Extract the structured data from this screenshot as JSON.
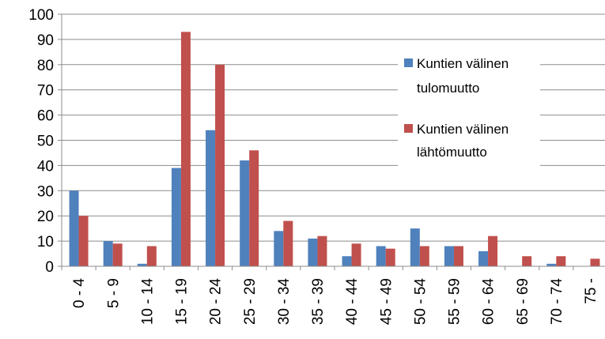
{
  "chart_data": {
    "type": "bar",
    "categories": [
      "0 - 4",
      "5 - 9",
      "10 - 14",
      "15 - 19",
      "20 - 24",
      "25 - 29",
      "30 - 34",
      "35 - 39",
      "40 - 44",
      "45 - 49",
      "50 - 54",
      "55 - 59",
      "60 - 64",
      "65 - 69",
      "70 - 74",
      "75 -"
    ],
    "series": [
      {
        "name_lines": [
          "Kuntien välinen",
          "tulomuutto"
        ],
        "color": "#4F81BD",
        "values": [
          30,
          10,
          1,
          39,
          54,
          42,
          14,
          11,
          4,
          8,
          15,
          8,
          6,
          0,
          1,
          0
        ]
      },
      {
        "name_lines": [
          "Kuntien välinen",
          "lähtömuutto"
        ],
        "color": "#C0504D",
        "values": [
          20,
          9,
          8,
          93,
          80,
          46,
          18,
          12,
          9,
          7,
          8,
          8,
          12,
          4,
          4,
          3
        ]
      }
    ],
    "title": "",
    "xlabel": "",
    "ylabel": "",
    "ylim": [
      0,
      100
    ],
    "yticks": [
      "0",
      "10",
      "20",
      "30",
      "40",
      "50",
      "60",
      "70",
      "80",
      "90",
      "100"
    ],
    "grid": true,
    "legend_position": "right"
  }
}
